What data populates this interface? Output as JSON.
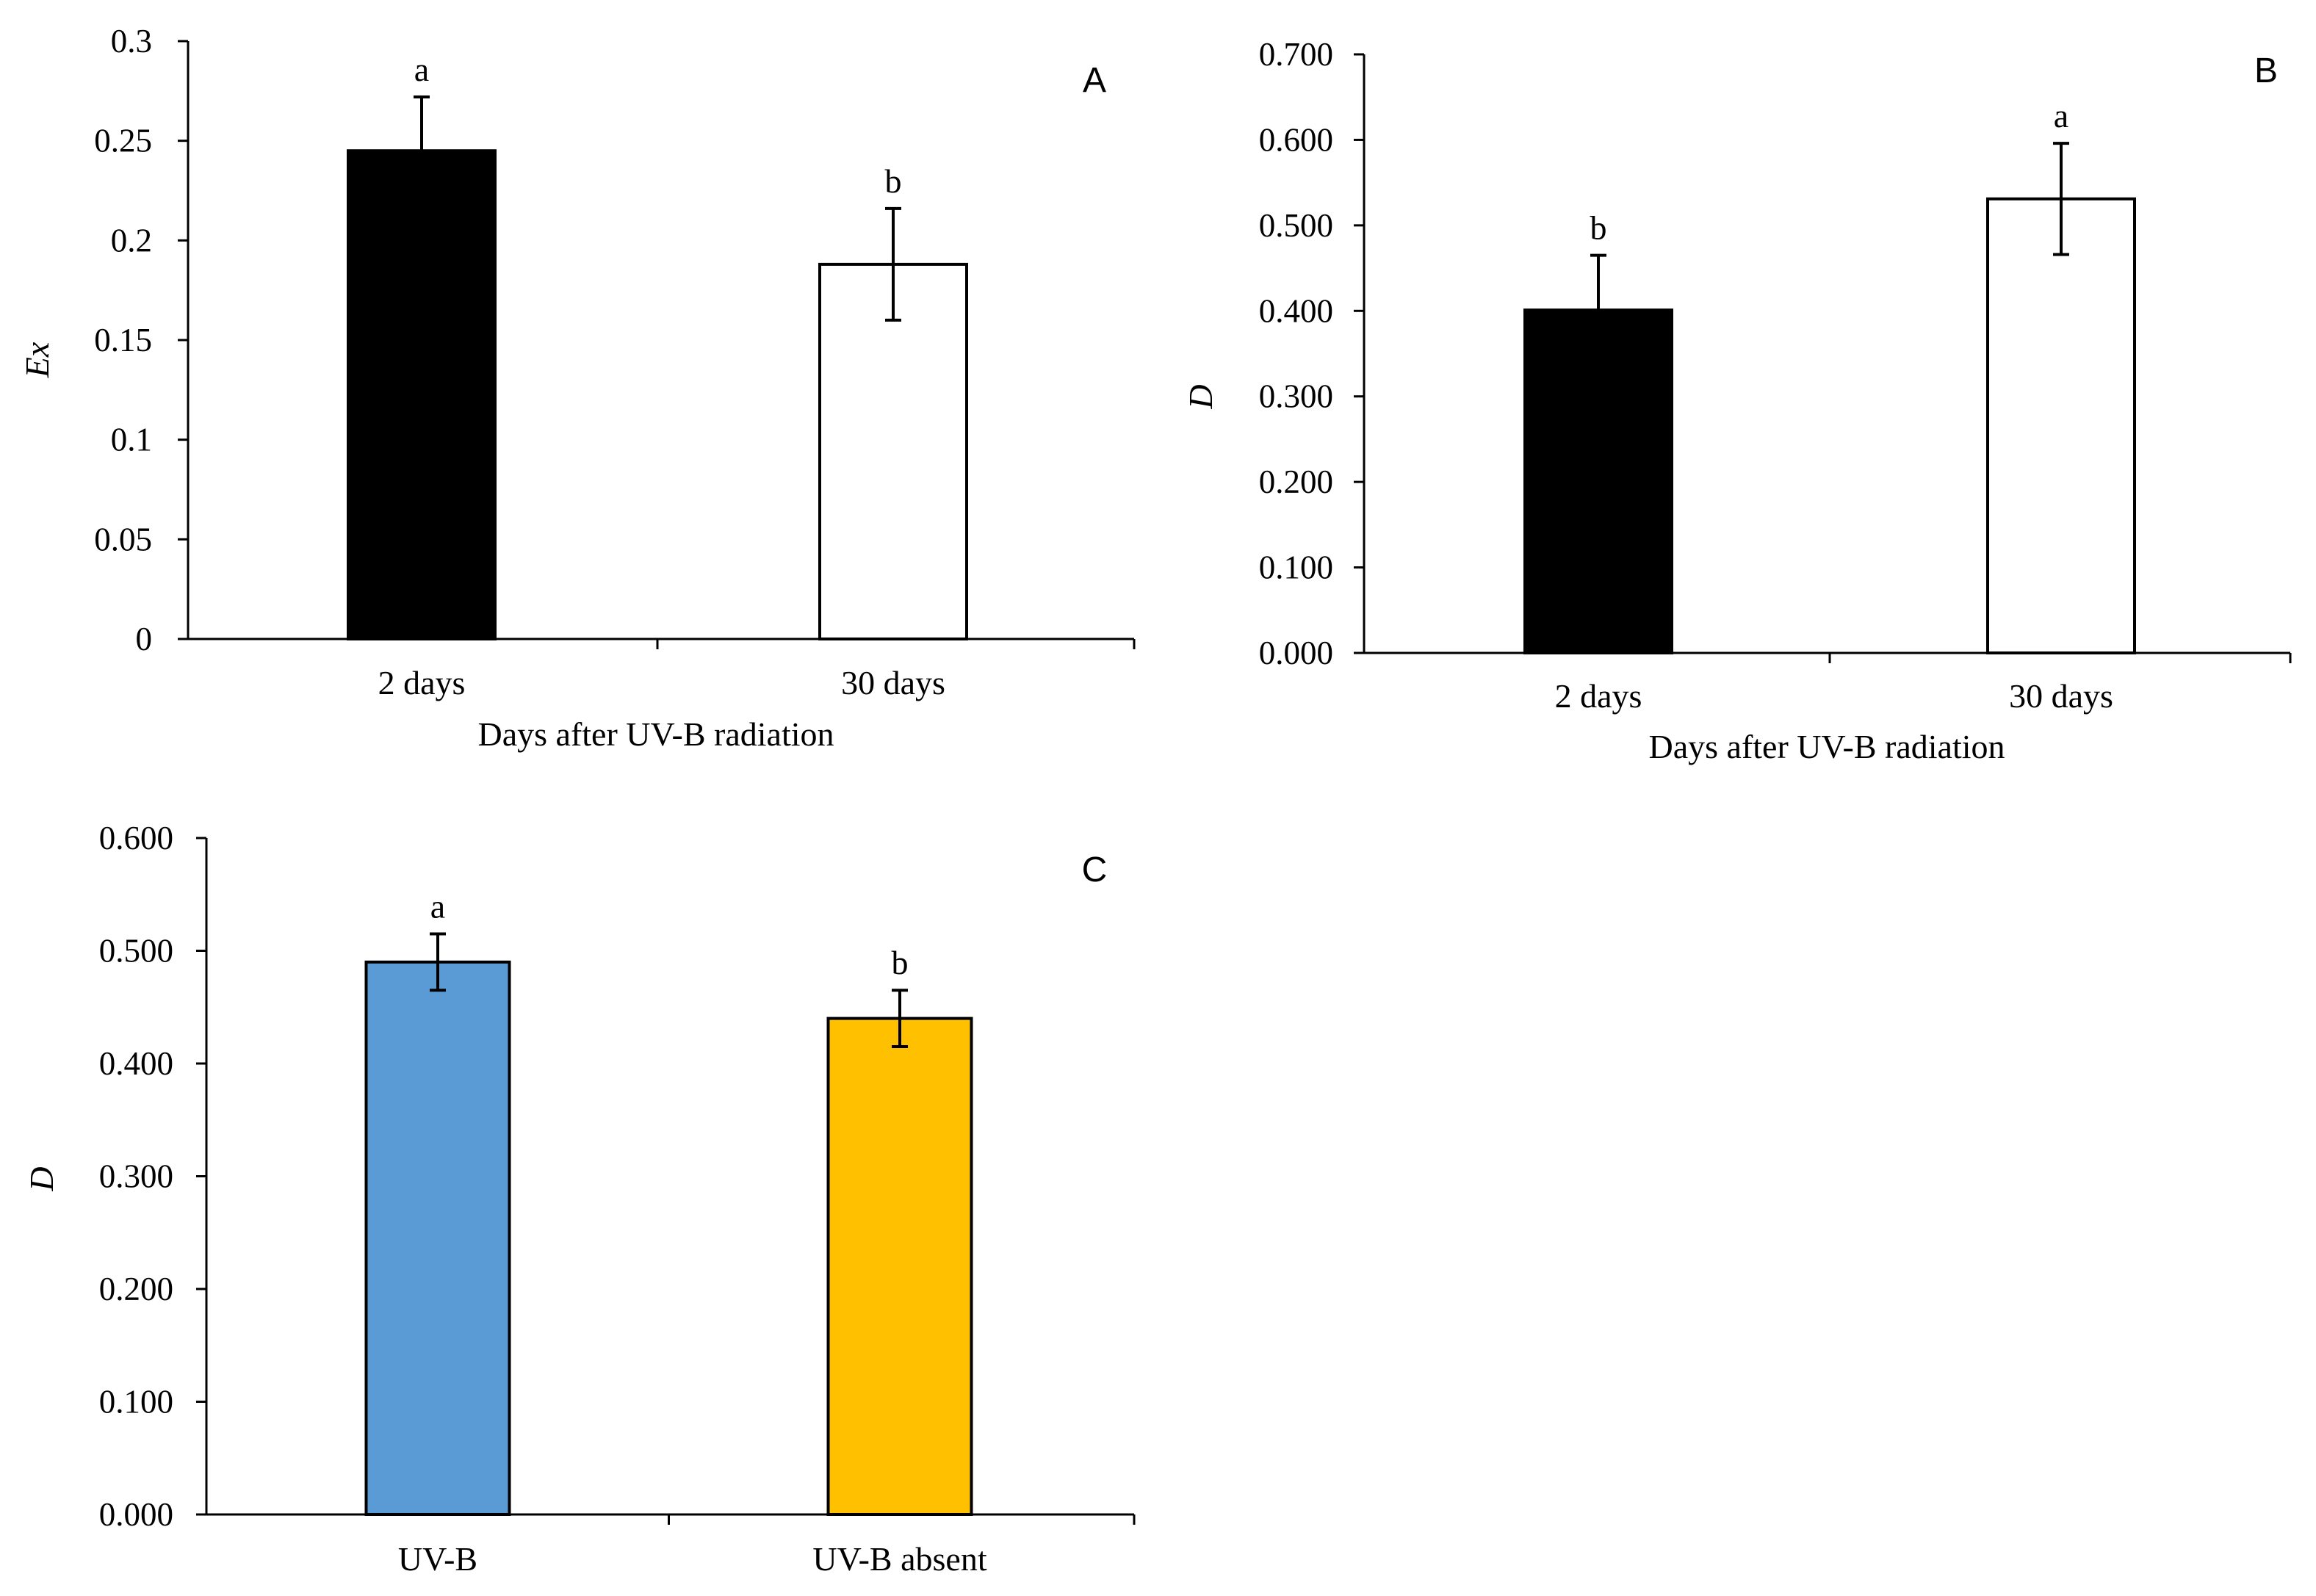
{
  "chart_data": [
    {
      "type": "bar",
      "panel": "A",
      "categories": [
        "2 days",
        "30 days"
      ],
      "values": [
        0.245,
        0.188
      ],
      "errors": [
        0.027,
        0.028
      ],
      "significance": [
        "a",
        "b"
      ],
      "bar_colors": [
        "#000000",
        "#ffffff"
      ],
      "ylabel": "Ex",
      "xlabel": "Days after UV-B radiation",
      "ylim": [
        0,
        0.3
      ],
      "yticks": [
        "0",
        "0.05",
        "0.1",
        "0.15",
        "0.2",
        "0.25",
        "0.3"
      ],
      "grid": false
    },
    {
      "type": "bar",
      "panel": "B",
      "categories": [
        "2 days",
        "30 days"
      ],
      "values": [
        0.401,
        0.531
      ],
      "errors": [
        0.064,
        0.065
      ],
      "significance": [
        "b",
        "a"
      ],
      "bar_colors": [
        "#000000",
        "#ffffff"
      ],
      "ylabel": "D",
      "xlabel": "Days after UV-B radiation",
      "ylim": [
        0,
        0.7
      ],
      "yticks": [
        "0.000",
        "0.100",
        "0.200",
        "0.300",
        "0.400",
        "0.500",
        "0.600",
        "0.700"
      ],
      "grid": false
    },
    {
      "type": "bar",
      "panel": "C",
      "categories": [
        "UV-B",
        "UV-B absent"
      ],
      "values": [
        0.49,
        0.44
      ],
      "errors": [
        0.025,
        0.025
      ],
      "significance": [
        "a",
        "b"
      ],
      "bar_colors": [
        "#5b9bd5",
        "#ffc000"
      ],
      "ylabel": "D",
      "xlabel": "",
      "ylim": [
        0,
        0.6
      ],
      "yticks": [
        "0.000",
        "0.100",
        "0.200",
        "0.300",
        "0.400",
        "0.500",
        "0.600"
      ],
      "grid": false
    }
  ]
}
